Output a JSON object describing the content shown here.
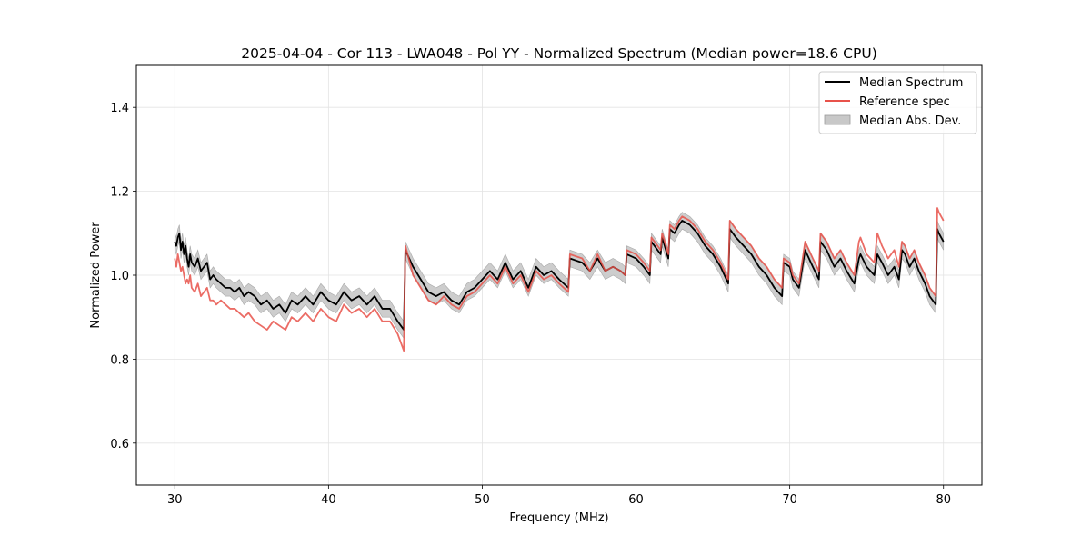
{
  "chart_data": {
    "type": "line",
    "title": "2025-04-04 - Cor 113 - LWA048 - Pol YY - Normalized Spectrum (Median power=18.6 CPU)",
    "xlabel": "Frequency (MHz)",
    "ylabel": "Normalized Power",
    "xlim": [
      27.5,
      82.5
    ],
    "ylim": [
      0.5,
      1.5
    ],
    "xticks": [
      30,
      40,
      50,
      60,
      70,
      80
    ],
    "yticks": [
      0.6,
      0.8,
      1.0,
      1.2,
      1.4
    ],
    "xtick_labels": [
      "30",
      "40",
      "50",
      "60",
      "70",
      "80"
    ],
    "ytick_labels": [
      "0.6",
      "0.8",
      "1.0",
      "1.2",
      "1.4"
    ],
    "grid": true,
    "legend_position": "top-right",
    "legend": [
      {
        "label": "Median Spectrum",
        "kind": "line",
        "color": "#000000"
      },
      {
        "label": "Reference spec",
        "kind": "line",
        "color": "#e8524a"
      },
      {
        "label": "Median Abs. Dev.",
        "kind": "band",
        "color": "#c8c8c8"
      }
    ],
    "series": [
      {
        "name": "Median Spectrum",
        "color": "#000000",
        "x": [
          30.0,
          30.1,
          30.2,
          30.3,
          30.4,
          30.5,
          30.6,
          30.7,
          30.8,
          30.9,
          31.0,
          31.1,
          31.3,
          31.5,
          31.7,
          31.9,
          32.1,
          32.3,
          32.5,
          32.7,
          33.0,
          33.3,
          33.6,
          33.9,
          34.2,
          34.5,
          34.8,
          35.2,
          35.6,
          36.0,
          36.4,
          36.8,
          37.2,
          37.6,
          38.0,
          38.5,
          39.0,
          39.5,
          40.0,
          40.5,
          41.0,
          41.5,
          42.0,
          42.5,
          43.0,
          43.5,
          44.0,
          44.5,
          44.9,
          45.0,
          45.5,
          46.0,
          46.5,
          47.0,
          47.5,
          48.0,
          48.5,
          49.0,
          49.5,
          50.0,
          50.5,
          51.0,
          51.5,
          52.0,
          52.5,
          53.0,
          53.5,
          54.0,
          54.5,
          55.0,
          55.6,
          55.7,
          56.5,
          57.0,
          57.5,
          58.0,
          58.5,
          59.0,
          59.3,
          59.4,
          60.0,
          60.5,
          60.9,
          61.0,
          61.6,
          61.7,
          62.1,
          62.2,
          62.5,
          62.8,
          63.0,
          63.5,
          64.0,
          64.5,
          65.0,
          65.5,
          66.0,
          66.1,
          66.5,
          67.0,
          67.5,
          68.0,
          68.5,
          69.0,
          69.5,
          69.6,
          70.0,
          70.2,
          70.6,
          71.0,
          71.5,
          71.9,
          72.0,
          72.4,
          72.9,
          73.3,
          73.7,
          74.2,
          74.5,
          74.6,
          75.0,
          75.5,
          75.7,
          76.0,
          76.4,
          76.8,
          77.1,
          77.3,
          77.5,
          77.8,
          78.1,
          78.4,
          78.8,
          79.1,
          79.5,
          79.6,
          79.7,
          80.0
        ],
        "values": [
          1.08,
          1.07,
          1.09,
          1.1,
          1.06,
          1.08,
          1.05,
          1.07,
          1.04,
          1.02,
          1.05,
          1.03,
          1.02,
          1.04,
          1.01,
          1.02,
          1.03,
          0.99,
          1.0,
          0.99,
          0.98,
          0.97,
          0.97,
          0.96,
          0.97,
          0.95,
          0.96,
          0.95,
          0.93,
          0.94,
          0.92,
          0.93,
          0.91,
          0.94,
          0.93,
          0.95,
          0.93,
          0.96,
          0.94,
          0.93,
          0.96,
          0.94,
          0.95,
          0.93,
          0.95,
          0.92,
          0.92,
          0.89,
          0.87,
          1.06,
          1.02,
          0.99,
          0.96,
          0.95,
          0.96,
          0.94,
          0.93,
          0.96,
          0.97,
          0.99,
          1.01,
          0.99,
          1.03,
          0.99,
          1.01,
          0.97,
          1.02,
          1.0,
          1.01,
          0.99,
          0.97,
          1.04,
          1.03,
          1.01,
          1.04,
          1.01,
          1.02,
          1.01,
          1.0,
          1.05,
          1.04,
          1.02,
          1.0,
          1.08,
          1.05,
          1.09,
          1.04,
          1.11,
          1.1,
          1.12,
          1.13,
          1.12,
          1.1,
          1.07,
          1.05,
          1.02,
          0.98,
          1.11,
          1.09,
          1.07,
          1.05,
          1.02,
          1.0,
          0.97,
          0.95,
          1.03,
          1.02,
          0.99,
          0.97,
          1.06,
          1.02,
          0.99,
          1.08,
          1.06,
          1.02,
          1.04,
          1.01,
          0.98,
          1.04,
          1.05,
          1.02,
          1.0,
          1.05,
          1.03,
          1.0,
          1.02,
          0.99,
          1.06,
          1.05,
          1.02,
          1.04,
          1.01,
          0.98,
          0.95,
          0.93,
          1.11,
          1.1,
          1.08
        ]
      },
      {
        "name": "Reference spec",
        "color": "#e8524a",
        "x": [
          30.0,
          30.1,
          30.2,
          30.3,
          30.4,
          30.5,
          30.6,
          30.7,
          30.8,
          30.9,
          31.0,
          31.1,
          31.3,
          31.5,
          31.7,
          31.9,
          32.1,
          32.3,
          32.5,
          32.7,
          33.0,
          33.3,
          33.6,
          33.9,
          34.2,
          34.5,
          34.8,
          35.2,
          35.6,
          36.0,
          36.4,
          36.8,
          37.2,
          37.6,
          38.0,
          38.5,
          39.0,
          39.5,
          40.0,
          40.5,
          41.0,
          41.5,
          42.0,
          42.5,
          43.0,
          43.5,
          44.0,
          44.5,
          44.9,
          45.0,
          45.5,
          46.0,
          46.5,
          47.0,
          47.5,
          48.0,
          48.5,
          49.0,
          49.5,
          50.0,
          50.5,
          51.0,
          51.5,
          52.0,
          52.5,
          53.0,
          53.5,
          54.0,
          54.5,
          55.0,
          55.6,
          55.7,
          56.5,
          57.0,
          57.5,
          58.0,
          58.5,
          59.0,
          59.3,
          59.4,
          60.0,
          60.5,
          60.9,
          61.0,
          61.6,
          61.7,
          62.1,
          62.2,
          62.5,
          62.8,
          63.0,
          63.5,
          64.0,
          64.5,
          65.0,
          65.5,
          66.0,
          66.1,
          66.5,
          67.0,
          67.5,
          68.0,
          68.5,
          69.0,
          69.5,
          69.6,
          70.0,
          70.2,
          70.6,
          71.0,
          71.5,
          71.9,
          72.0,
          72.4,
          72.9,
          73.3,
          73.7,
          74.2,
          74.5,
          74.6,
          75.0,
          75.5,
          75.7,
          76.0,
          76.4,
          76.8,
          77.1,
          77.3,
          77.5,
          77.8,
          78.1,
          78.4,
          78.8,
          79.1,
          79.5,
          79.6,
          79.7,
          80.0
        ],
        "values": [
          1.04,
          1.02,
          1.05,
          1.03,
          1.01,
          1.02,
          1.0,
          0.98,
          0.99,
          0.98,
          1.0,
          0.97,
          0.96,
          0.98,
          0.95,
          0.96,
          0.97,
          0.94,
          0.94,
          0.93,
          0.94,
          0.93,
          0.92,
          0.92,
          0.91,
          0.9,
          0.91,
          0.89,
          0.88,
          0.87,
          0.89,
          0.88,
          0.87,
          0.9,
          0.89,
          0.91,
          0.89,
          0.92,
          0.9,
          0.89,
          0.93,
          0.91,
          0.92,
          0.9,
          0.92,
          0.89,
          0.89,
          0.86,
          0.82,
          1.07,
          1.0,
          0.97,
          0.94,
          0.93,
          0.95,
          0.93,
          0.92,
          0.95,
          0.96,
          0.98,
          1.0,
          0.98,
          1.02,
          0.98,
          1.0,
          0.96,
          1.01,
          0.99,
          1.0,
          0.98,
          0.96,
          1.05,
          1.04,
          1.01,
          1.05,
          1.01,
          1.02,
          1.01,
          1.0,
          1.06,
          1.05,
          1.03,
          1.01,
          1.09,
          1.06,
          1.1,
          1.05,
          1.12,
          1.11,
          1.13,
          1.14,
          1.13,
          1.11,
          1.08,
          1.06,
          1.03,
          0.99,
          1.13,
          1.11,
          1.09,
          1.07,
          1.04,
          1.02,
          0.99,
          0.97,
          1.04,
          1.03,
          1.0,
          0.98,
          1.08,
          1.04,
          1.01,
          1.1,
          1.08,
          1.04,
          1.06,
          1.03,
          1.0,
          1.08,
          1.09,
          1.05,
          1.03,
          1.1,
          1.07,
          1.04,
          1.06,
          1.02,
          1.08,
          1.07,
          1.04,
          1.06,
          1.03,
          1.0,
          0.97,
          0.95,
          1.16,
          1.15,
          1.13
        ]
      }
    ],
    "band": {
      "name": "Median Abs. Dev.",
      "half_width": 0.02,
      "around": "Median Spectrum"
    }
  }
}
